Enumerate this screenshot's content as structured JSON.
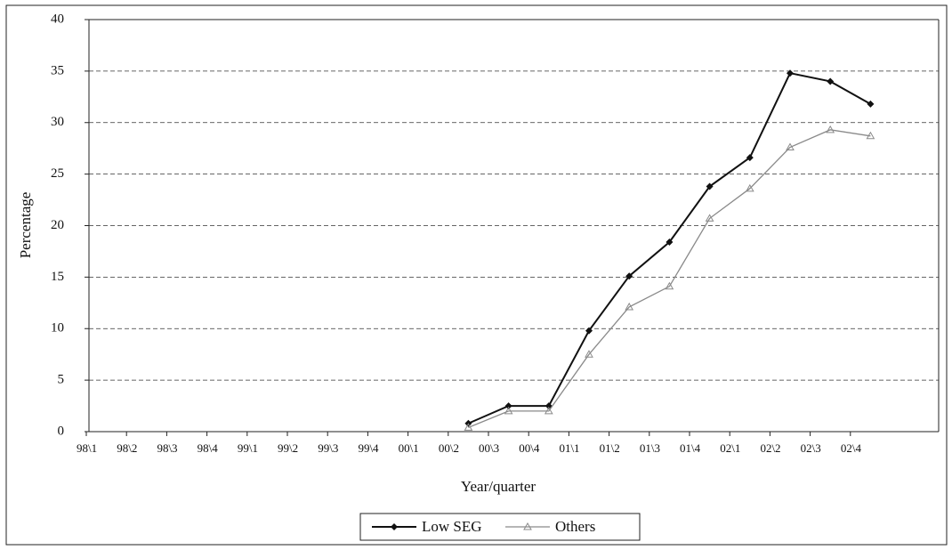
{
  "chart_data": {
    "type": "line",
    "x_label": "Year/quarter",
    "y_label": "Percentage",
    "categories": [
      "98\\1",
      "98\\2",
      "98\\3",
      "98\\4",
      "99\\1",
      "99\\2",
      "99\\3",
      "99\\4",
      "00\\1",
      "00\\2",
      "00\\3",
      "00\\4",
      "01\\1",
      "01\\2",
      "01\\3",
      "01\\4",
      "02\\1",
      "02\\2",
      "02\\3",
      "02\\4"
    ],
    "series": [
      {
        "name": "Low SEG",
        "color": "#111111",
        "marker": "diamond",
        "values": [
          null,
          null,
          null,
          null,
          null,
          null,
          null,
          null,
          null,
          0.8,
          2.5,
          2.5,
          9.8,
          15.1,
          18.4,
          23.8,
          26.6,
          34.8,
          34.0,
          31.8
        ]
      },
      {
        "name": "Others",
        "color": "#8a8a8a",
        "marker": "triangle",
        "values": [
          null,
          null,
          null,
          null,
          null,
          null,
          null,
          null,
          null,
          0.4,
          2.0,
          2.0,
          7.5,
          12.1,
          14.1,
          20.7,
          23.6,
          27.6,
          29.3,
          28.7
        ]
      }
    ],
    "ylim": [
      0,
      40
    ],
    "yticks": [
      0,
      5,
      10,
      15,
      20,
      25,
      30,
      35,
      40
    ],
    "grid": true,
    "legend": "bottom"
  }
}
